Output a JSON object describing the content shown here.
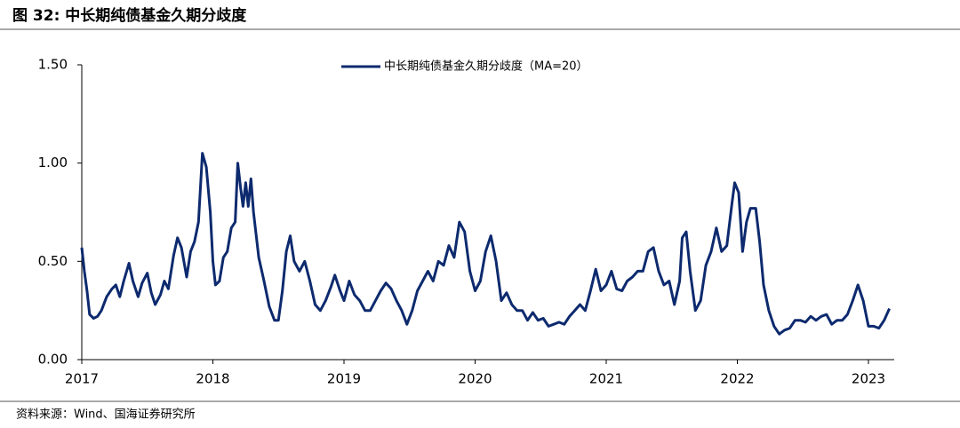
{
  "chart_data": {
    "type": "line",
    "title": "图 32:  中长期纯债基金久期分歧度",
    "source": "资料来源：Wind、国海证券研究所",
    "xlim": [
      2017,
      2023.2
    ],
    "xticks": [
      2017,
      2018,
      2019,
      2020,
      2021,
      2022,
      2023
    ],
    "ylim": [
      0,
      1.5
    ],
    "yticks": [
      {
        "value": 0,
        "label": "0.00"
      },
      {
        "value": 0.5,
        "label": "0.50"
      },
      {
        "value": 1,
        "label": "1.00"
      },
      {
        "value": 1.5,
        "label": "1.50"
      }
    ],
    "legend": "top",
    "series": [
      {
        "name": "中长期纯债基金久期分歧度（MA=20）",
        "color": "#0d2a6e",
        "x": [
          2017.0,
          2017.02,
          2017.04,
          2017.06,
          2017.09,
          2017.12,
          2017.15,
          2017.19,
          2017.23,
          2017.26,
          2017.29,
          2017.32,
          2017.36,
          2017.39,
          2017.43,
          2017.46,
          2017.5,
          2017.53,
          2017.56,
          2017.6,
          2017.63,
          2017.66,
          2017.7,
          2017.73,
          2017.76,
          2017.8,
          2017.83,
          2017.86,
          2017.89,
          2017.92,
          2017.95,
          2017.98,
          2018.0,
          2018.02,
          2018.05,
          2018.08,
          2018.11,
          2018.14,
          2018.17,
          2018.19,
          2018.21,
          2018.23,
          2018.25,
          2018.27,
          2018.29,
          2018.31,
          2018.35,
          2018.39,
          2018.43,
          2018.47,
          2018.5,
          2018.53,
          2018.56,
          2018.59,
          2018.62,
          2018.66,
          2018.7,
          2018.74,
          2018.78,
          2018.82,
          2018.86,
          2018.9,
          2018.93,
          2018.97,
          2019.0,
          2019.04,
          2019.08,
          2019.12,
          2019.16,
          2019.2,
          2019.24,
          2019.28,
          2019.32,
          2019.36,
          2019.4,
          2019.44,
          2019.48,
          2019.52,
          2019.56,
          2019.6,
          2019.64,
          2019.68,
          2019.72,
          2019.76,
          2019.8,
          2019.84,
          2019.88,
          2019.92,
          2019.96,
          2020.0,
          2020.04,
          2020.08,
          2020.12,
          2020.16,
          2020.2,
          2020.24,
          2020.28,
          2020.32,
          2020.36,
          2020.4,
          2020.44,
          2020.48,
          2020.52,
          2020.56,
          2020.6,
          2020.64,
          2020.68,
          2020.72,
          2020.76,
          2020.8,
          2020.84,
          2020.88,
          2020.92,
          2020.96,
          2021.0,
          2021.04,
          2021.08,
          2021.12,
          2021.16,
          2021.2,
          2021.24,
          2021.28,
          2021.32,
          2021.36,
          2021.4,
          2021.44,
          2021.48,
          2021.52,
          2021.56,
          2021.58,
          2021.61,
          2021.64,
          2021.68,
          2021.72,
          2021.76,
          2021.8,
          2021.84,
          2021.88,
          2021.92,
          2021.96,
          2021.98,
          2022.01,
          2022.04,
          2022.07,
          2022.1,
          2022.14,
          2022.17,
          2022.2,
          2022.24,
          2022.28,
          2022.32,
          2022.36,
          2022.4,
          2022.44,
          2022.48,
          2022.52,
          2022.56,
          2022.6,
          2022.64,
          2022.68,
          2022.72,
          2022.76,
          2022.8,
          2022.84,
          2022.88,
          2022.92,
          2022.96,
          2023.0,
          2023.04,
          2023.08,
          2023.12,
          2023.16
        ],
        "values": [
          0.57,
          0.45,
          0.35,
          0.23,
          0.21,
          0.22,
          0.25,
          0.32,
          0.36,
          0.38,
          0.32,
          0.4,
          0.49,
          0.4,
          0.32,
          0.39,
          0.44,
          0.34,
          0.28,
          0.33,
          0.4,
          0.36,
          0.53,
          0.62,
          0.57,
          0.42,
          0.55,
          0.6,
          0.7,
          1.05,
          0.98,
          0.75,
          0.5,
          0.38,
          0.4,
          0.52,
          0.55,
          0.67,
          0.7,
          1.0,
          0.88,
          0.78,
          0.9,
          0.78,
          0.92,
          0.75,
          0.52,
          0.4,
          0.27,
          0.2,
          0.2,
          0.35,
          0.55,
          0.63,
          0.5,
          0.45,
          0.5,
          0.4,
          0.28,
          0.25,
          0.3,
          0.37,
          0.43,
          0.35,
          0.3,
          0.4,
          0.33,
          0.3,
          0.25,
          0.25,
          0.3,
          0.35,
          0.39,
          0.36,
          0.3,
          0.25,
          0.18,
          0.25,
          0.35,
          0.4,
          0.45,
          0.4,
          0.5,
          0.48,
          0.58,
          0.52,
          0.7,
          0.65,
          0.45,
          0.35,
          0.4,
          0.55,
          0.63,
          0.5,
          0.3,
          0.34,
          0.28,
          0.25,
          0.25,
          0.2,
          0.24,
          0.2,
          0.21,
          0.17,
          0.18,
          0.19,
          0.18,
          0.22,
          0.25,
          0.28,
          0.25,
          0.35,
          0.46,
          0.35,
          0.38,
          0.45,
          0.36,
          0.35,
          0.4,
          0.42,
          0.45,
          0.45,
          0.55,
          0.57,
          0.45,
          0.38,
          0.4,
          0.28,
          0.4,
          0.62,
          0.65,
          0.45,
          0.25,
          0.3,
          0.48,
          0.55,
          0.67,
          0.55,
          0.58,
          0.8,
          0.9,
          0.85,
          0.55,
          0.7,
          0.77,
          0.77,
          0.6,
          0.38,
          0.25,
          0.17,
          0.13,
          0.15,
          0.16,
          0.2,
          0.2,
          0.19,
          0.22,
          0.2,
          0.22,
          0.23,
          0.18,
          0.2,
          0.2,
          0.23,
          0.3,
          0.38,
          0.3,
          0.17,
          0.17,
          0.16,
          0.2,
          0.26
        ]
      }
    ]
  }
}
